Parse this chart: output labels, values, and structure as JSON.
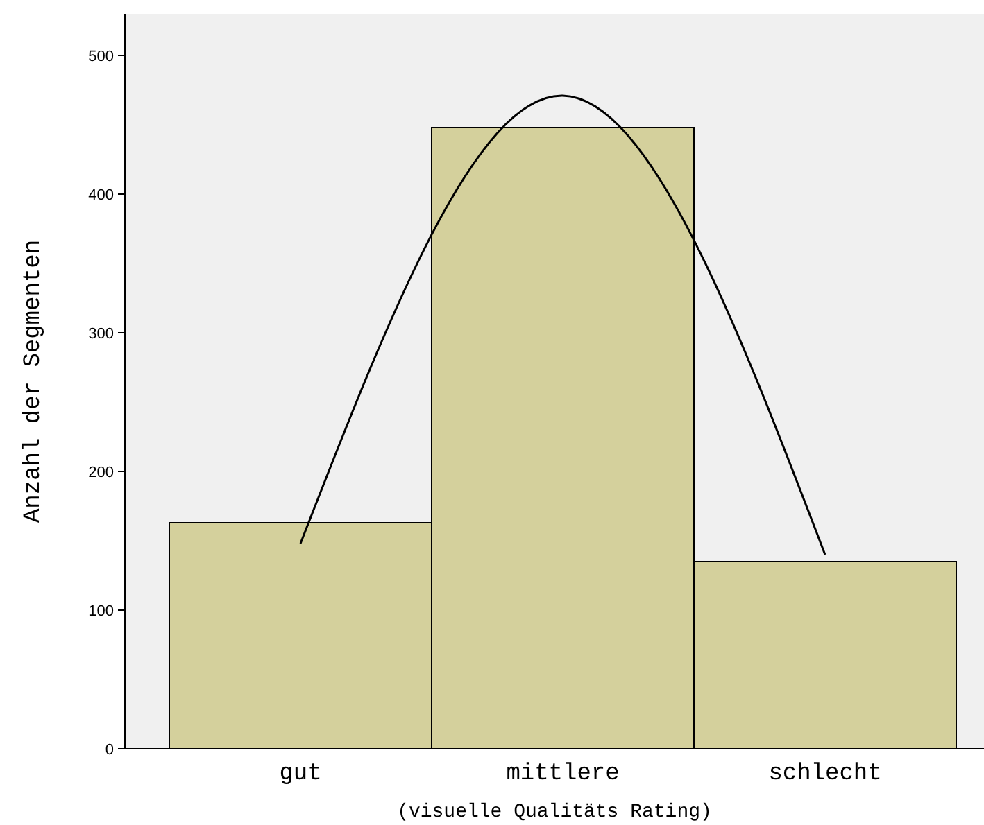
{
  "chart_data": {
    "type": "bar",
    "xlabel": "(visuelle Qualitäts Rating)",
    "ylabel": "Anzahl der Segmenten",
    "categories": [
      "gut",
      "mittlere",
      "schlecht"
    ],
    "ylim": [
      0,
      530
    ],
    "yticks": [
      0,
      100,
      200,
      300,
      400,
      500
    ],
    "grid": false,
    "series": [
      {
        "color": "#d4d09c",
        "values": [
          163,
          448,
          135
        ]
      },
      {
        "type": "line",
        "color": "#000000",
        "values": [
          148,
          471,
          140
        ]
      }
    ]
  }
}
